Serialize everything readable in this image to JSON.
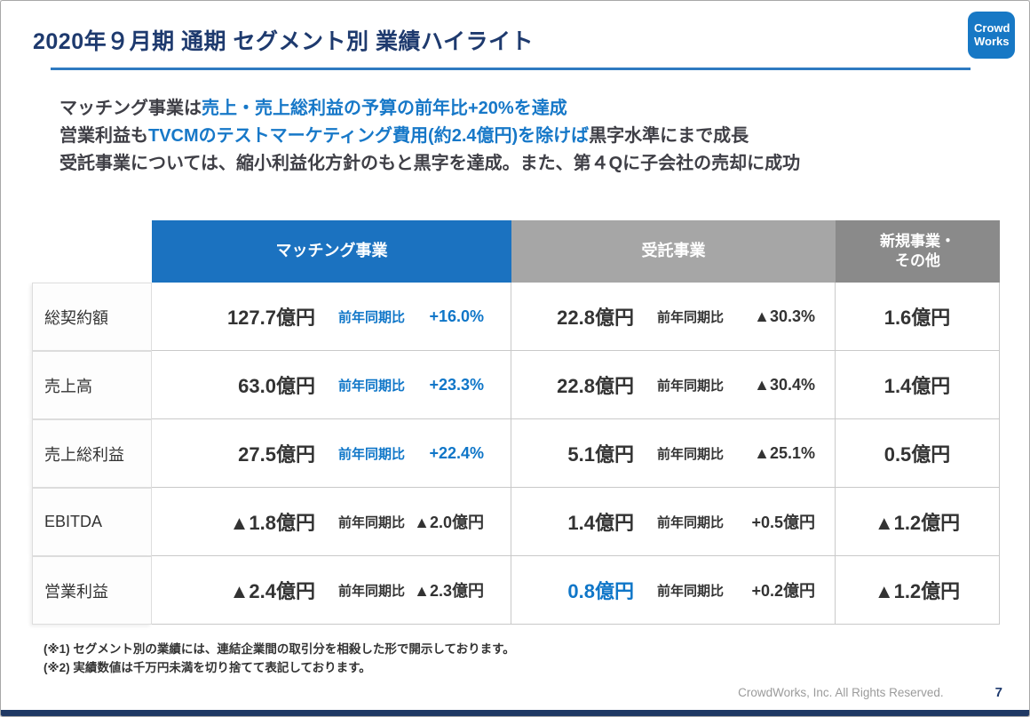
{
  "header": {
    "title": "2020年９月期 通期 セグメント別 業績ハイライト",
    "logo": {
      "line1": "Crowd",
      "line2": "Works"
    }
  },
  "summary": {
    "line1": {
      "part1": "マッチング事業は",
      "part2": "売上・売上総利益の予算の前年比+20%を達成"
    },
    "line2": {
      "part1": "営業利益も",
      "part2": "TVCMのテストマーケティング費用(約2.4億円)を除けば",
      "part3": "黒字水準にまで成長"
    },
    "line3": "受託事業については、縮小利益化方針のもと黒字を達成。また、第４Qに子会社の売却に成功"
  },
  "table": {
    "columns": {
      "matching": "マッチング事業",
      "contracted": "受託事業",
      "new_business": "新規事業・\nその他"
    },
    "rows": [
      {
        "label": "総契約額",
        "matching": {
          "value": "127.7億円",
          "yoy": "前年同期比",
          "change": "+16.0%"
        },
        "contracted": {
          "value": "22.8億円",
          "yoy": "前年同期比",
          "change": "▲30.3%"
        },
        "new_business": "1.6億円"
      },
      {
        "label": "売上高",
        "matching": {
          "value": "63.0億円",
          "yoy": "前年同期比",
          "change": "+23.3%"
        },
        "contracted": {
          "value": "22.8億円",
          "yoy": "前年同期比",
          "change": "▲30.4%"
        },
        "new_business": "1.4億円"
      },
      {
        "label": "売上総利益",
        "matching": {
          "value": "27.5億円",
          "yoy": "前年同期比",
          "change": "+22.4%"
        },
        "contracted": {
          "value": "5.1億円",
          "yoy": "前年同期比",
          "change": "▲25.1%"
        },
        "new_business": "0.5億円"
      },
      {
        "label": "EBITDA",
        "matching": {
          "value": "▲1.8億円",
          "yoy": "前年同期比",
          "change": "▲2.0億円"
        },
        "contracted": {
          "value": "1.4億円",
          "yoy": "前年同期比",
          "change": "+0.5億円"
        },
        "new_business": "▲1.2億円"
      },
      {
        "label": "営業利益",
        "matching": {
          "value": "▲2.4億円",
          "yoy": "前年同期比",
          "change": "▲2.3億円"
        },
        "contracted": {
          "value": "0.8億円",
          "yoy": "前年同期比",
          "change": "+0.2億円"
        },
        "new_business": "▲1.2億円"
      }
    ]
  },
  "footnotes": {
    "note1": "(※1) セグメント別の業績には、連結企業間の取引分を相殺した形で開示しております。",
    "note2": "(※2) 実績数値は千万円未満を切り捨てて表記しております。"
  },
  "footer": {
    "copyright": "CrowdWorks, Inc. All Rights Reserved.",
    "page_number": "7"
  },
  "colors": {
    "accent_blue": "#1778c5",
    "navy": "#1f3864",
    "header_blue": "#1b72c0",
    "header_gray": "#a6a6a6",
    "header_dark_gray": "#8a8a8a",
    "highlight_text_blue": "#0f76c8"
  }
}
